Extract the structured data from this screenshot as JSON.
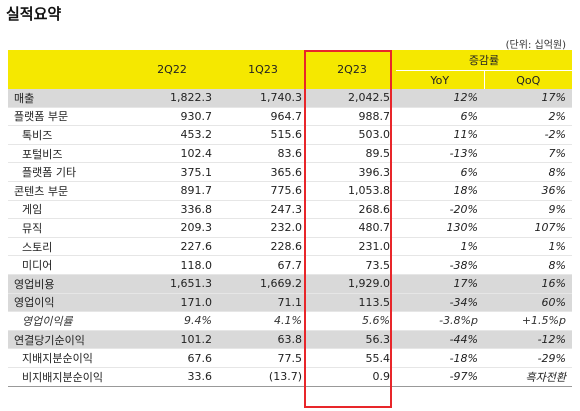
{
  "title": "실적요약",
  "unit": "(단위: 십억원)",
  "header": {
    "col1": "2Q22",
    "col2": "1Q23",
    "col3": "2Q23",
    "group": "증감률",
    "yoy": "YoY",
    "qoq": "QoQ"
  },
  "rows": [
    {
      "label": "매출",
      "v1": "1,822.3",
      "v2": "1,740.3",
      "v3": "2,042.5",
      "yoy": "12%",
      "qoq": "17%"
    },
    {
      "label": "플랫폼 부문",
      "v1": "930.7",
      "v2": "964.7",
      "v3": "988.7",
      "yoy": "6%",
      "qoq": "2%"
    },
    {
      "label": "톡비즈",
      "v1": "453.2",
      "v2": "515.6",
      "v3": "503.0",
      "yoy": "11%",
      "qoq": "-2%"
    },
    {
      "label": "포털비즈",
      "v1": "102.4",
      "v2": "83.6",
      "v3": "89.5",
      "yoy": "-13%",
      "qoq": "7%"
    },
    {
      "label": "플랫폼 기타",
      "v1": "375.1",
      "v2": "365.6",
      "v3": "396.3",
      "yoy": "6%",
      "qoq": "8%"
    },
    {
      "label": "콘텐츠 부문",
      "v1": "891.7",
      "v2": "775.6",
      "v3": "1,053.8",
      "yoy": "18%",
      "qoq": "36%"
    },
    {
      "label": "게임",
      "v1": "336.8",
      "v2": "247.3",
      "v3": "268.6",
      "yoy": "-20%",
      "qoq": "9%"
    },
    {
      "label": "뮤직",
      "v1": "209.3",
      "v2": "232.0",
      "v3": "480.7",
      "yoy": "130%",
      "qoq": "107%"
    },
    {
      "label": "스토리",
      "v1": "227.6",
      "v2": "228.6",
      "v3": "231.0",
      "yoy": "1%",
      "qoq": "1%"
    },
    {
      "label": "미디어",
      "v1": "118.0",
      "v2": "67.7",
      "v3": "73.5",
      "yoy": "-38%",
      "qoq": "8%"
    },
    {
      "label": "영업비용",
      "v1": "1,651.3",
      "v2": "1,669.2",
      "v3": "1,929.0",
      "yoy": "17%",
      "qoq": "16%"
    },
    {
      "label": "영업이익",
      "v1": "171.0",
      "v2": "71.1",
      "v3": "113.5",
      "yoy": "-34%",
      "qoq": "60%"
    },
    {
      "label": "영업이익률",
      "v1": "9.4%",
      "v2": "4.1%",
      "v3": "5.6%",
      "yoy": "-3.8%p",
      "qoq": "+1.5%p"
    },
    {
      "label": "연결당기순이익",
      "v1": "101.2",
      "v2": "63.8",
      "v3": "56.3",
      "yoy": "-44%",
      "qoq": "-12%"
    },
    {
      "label": "지배지분순이익",
      "v1": "67.6",
      "v2": "77.5",
      "v3": "55.4",
      "yoy": "-18%",
      "qoq": "-29%"
    },
    {
      "label": "비지배지분순이익",
      "v1": "33.6",
      "v2": "(13.7)",
      "v3": "0.9",
      "yoy": "-97%",
      "qoq": "흑자전환"
    }
  ]
}
